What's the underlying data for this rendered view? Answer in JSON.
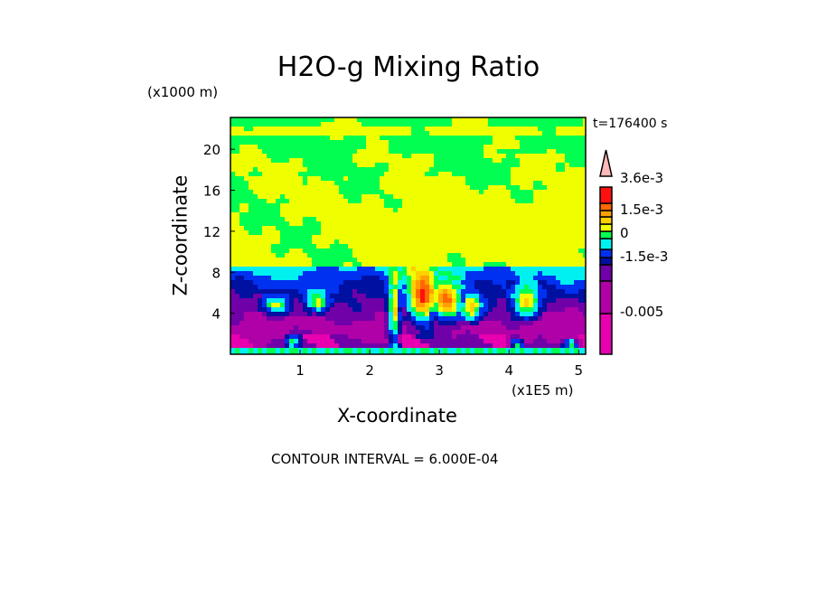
{
  "chart_data": {
    "type": "heatmap",
    "title": "H2O-g Mixing Ratio",
    "xlabel": "X-coordinate",
    "ylabel": "Z-coordinate",
    "x_unit": "(x1E5 m)",
    "y_unit": "(x1000 m)",
    "time_label": "t=176400 s",
    "annotation": "CONTOUR INTERVAL = 6.000E-04",
    "xlim": [
      0,
      5.1
    ],
    "ylim": [
      0,
      23.1
    ],
    "x_ticks": [
      "1",
      "2",
      "3",
      "4",
      "5"
    ],
    "x_tick_values": [
      1,
      2,
      3,
      4,
      5
    ],
    "y_ticks": [
      "4",
      "8",
      "12",
      "16",
      "20"
    ],
    "y_tick_values": [
      4,
      8,
      12,
      16,
      20
    ],
    "grid": false,
    "colorbar": {
      "colors": [
        "#e800b0",
        "#b000a8",
        "#7000a8",
        "#0010a0",
        "#0030f0",
        "#00f0f0",
        "#00ff50",
        "#f0ff00",
        "#ffd000",
        "#ffa000",
        "#ff6800",
        "#ff1010",
        "#ff7070",
        "#ffb8b8"
      ],
      "labels": [
        "3.6e-3",
        "1.5e-3",
        "0",
        "-1.5e-3",
        "-0.005"
      ],
      "label_values": [
        0.0036,
        0.0015,
        0,
        -0.0015,
        -0.005
      ]
    },
    "field_description_levels": "filled contours, negative (magenta/purple) near surface, positive (yellow) aloft"
  }
}
